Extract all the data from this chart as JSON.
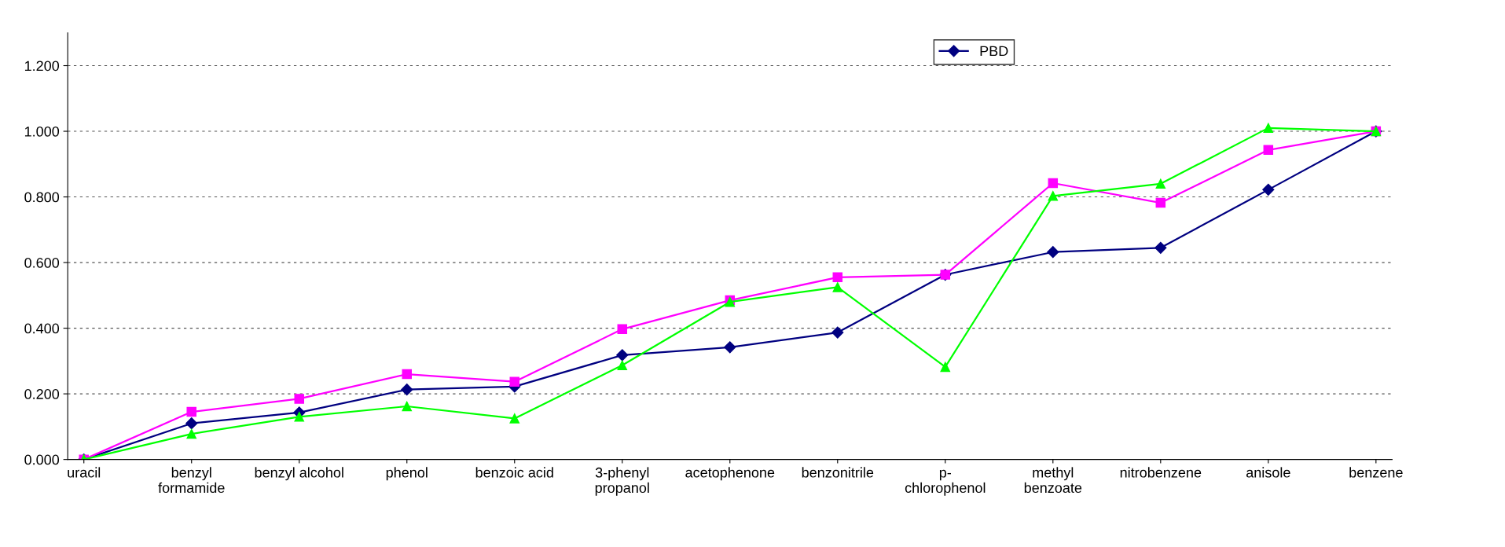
{
  "chart_data": {
    "type": "line",
    "categories": [
      "uracil",
      "benzyl\nformamide",
      "benzyl alcohol",
      "phenol",
      "benzoic acid",
      "3-phenyl\npropanol",
      "acetophenone",
      "benzonitrile",
      "p-\nchlorophenol",
      "methyl\nbenzoate",
      "nitrobenzene",
      "anisole",
      "benzene"
    ],
    "series": [
      {
        "name": "PBD",
        "color": "#000080",
        "marker": "diamond",
        "values": [
          0,
          0.11,
          0.143,
          0.213,
          0.222,
          0.318,
          0.342,
          0.387,
          0.563,
          0.632,
          0.645,
          0.822,
          1.0
        ]
      },
      {
        "color": "#ff00ff",
        "marker": "square",
        "values": [
          0,
          0.145,
          0.185,
          0.26,
          0.237,
          0.397,
          0.485,
          0.555,
          0.563,
          0.842,
          0.782,
          0.943,
          1.0
        ]
      },
      {
        "color": "#00ff00",
        "marker": "triangle",
        "values": [
          0,
          0.078,
          0.13,
          0.162,
          0.125,
          0.287,
          0.48,
          0.525,
          0.282,
          0.803,
          0.84,
          1.01,
          1.0
        ]
      }
    ],
    "ylim": [
      0,
      1.3
    ],
    "yticks": [
      {
        "value": 0,
        "label": "0.000"
      },
      {
        "value": 0.2,
        "label": "0.200"
      },
      {
        "value": 0.4,
        "label": "0.400"
      },
      {
        "value": 0.6,
        "label": "0.600"
      },
      {
        "value": 0.8,
        "label": "0.800"
      },
      {
        "value": 1.0,
        "label": "1.000"
      },
      {
        "value": 1.2,
        "label": "1.200"
      }
    ],
    "grid": "y",
    "legend": "top right",
    "line_style": "solid"
  }
}
